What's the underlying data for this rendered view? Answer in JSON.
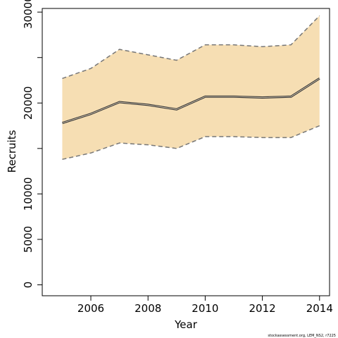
{
  "chart_data": {
    "type": "area",
    "title": "",
    "xlabel": "Year",
    "ylabel": "Recruits",
    "x": [
      2005,
      2006,
      2007,
      2008,
      2009,
      2010,
      2011,
      2012,
      2013,
      2014
    ],
    "xlim": [
      2004.3,
      2014.35
    ],
    "ylim": [
      -1200,
      30400
    ],
    "x_ticks": [
      2006,
      2008,
      2010,
      2012,
      2014
    ],
    "x_tick_labels": [
      "2006",
      "2008",
      "2010",
      "2012",
      "2014"
    ],
    "y_ticks": [
      0,
      5000,
      10000,
      20000,
      30000
    ],
    "y_tick_labels": [
      "0",
      "5000",
      "10000",
      "20000",
      "30000"
    ],
    "y_minor_ticks": [
      15000,
      25000
    ],
    "grid": false,
    "series": [
      {
        "role": "estimate",
        "values": [
          17800,
          18800,
          20100,
          19800,
          19300,
          20700,
          20700,
          20600,
          20700,
          22700
        ]
      },
      {
        "role": "upper",
        "values": [
          22700,
          23800,
          25900,
          25300,
          24700,
          26400,
          26400,
          26200,
          26400,
          29600
        ]
      },
      {
        "role": "lower",
        "values": [
          13800,
          14500,
          15600,
          15400,
          15000,
          16300,
          16300,
          16200,
          16200,
          17500
        ]
      }
    ],
    "colors": {
      "band": "#f6deb3",
      "estimate": "#333333",
      "bounds": "#777777",
      "axis": "#000000"
    },
    "credit": "stockassessment.org, LEM_NS2, r7225"
  }
}
